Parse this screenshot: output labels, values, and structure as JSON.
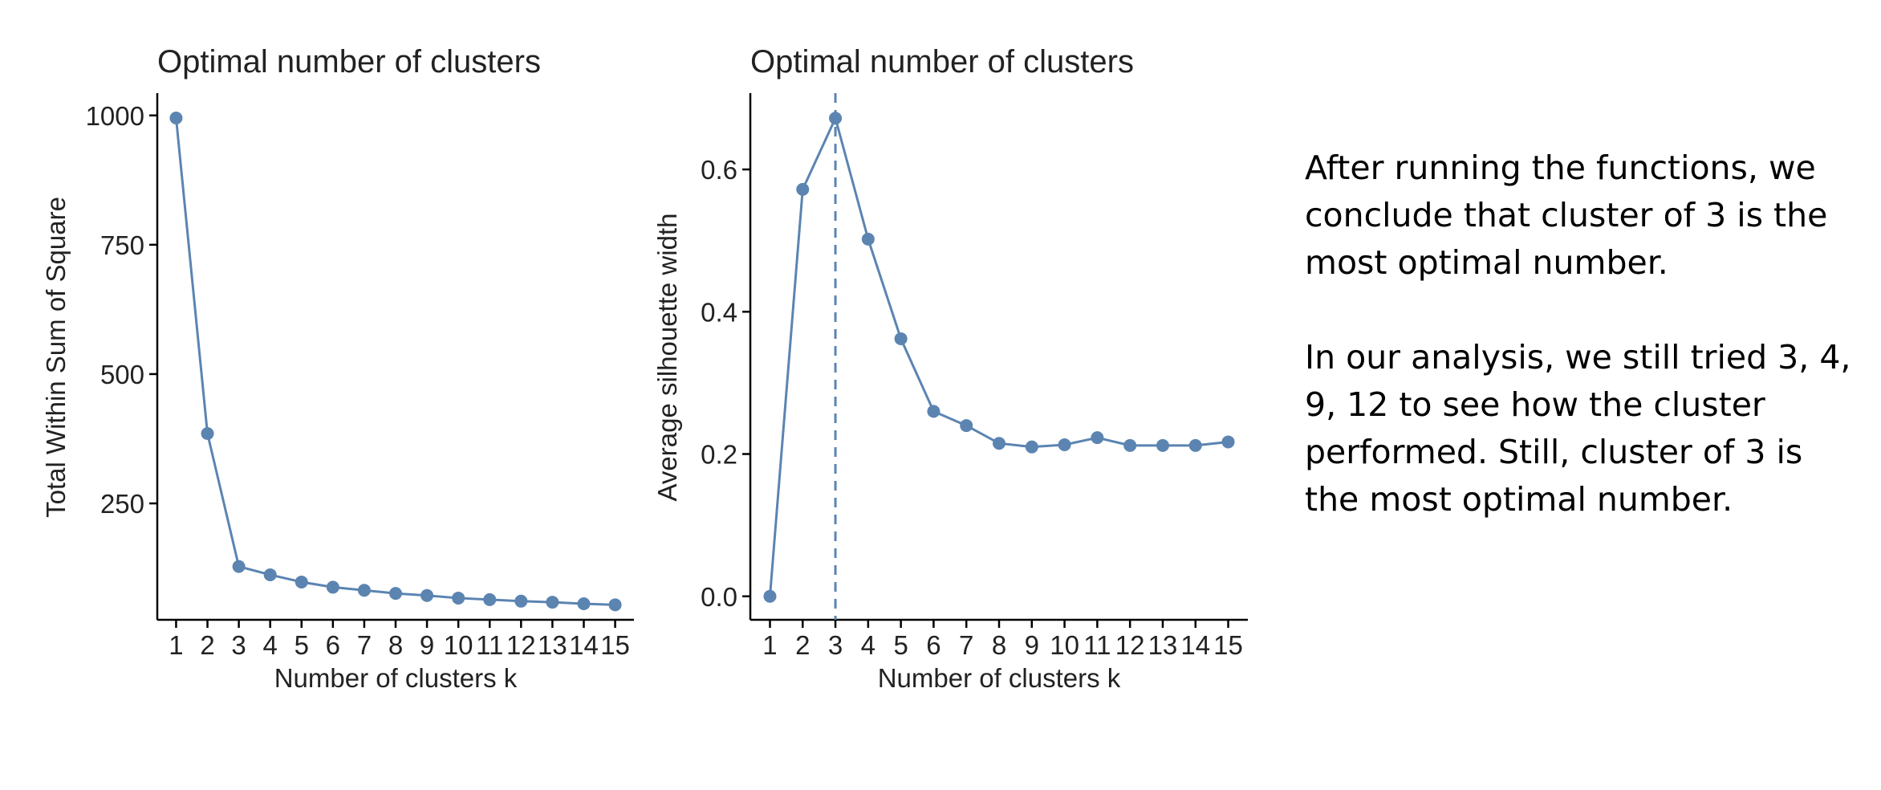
{
  "chart_data": [
    {
      "type": "line",
      "title": "Optimal number of clusters",
      "xlabel": "Number of clusters k",
      "ylabel": "Total Within Sum of Square",
      "x": [
        1,
        2,
        3,
        4,
        5,
        6,
        7,
        8,
        9,
        10,
        11,
        12,
        13,
        14,
        15
      ],
      "values": [
        995,
        385,
        128,
        112,
        98,
        88,
        82,
        76,
        72,
        67,
        64,
        61,
        59,
        56,
        54
      ],
      "yticks": [
        250,
        500,
        750,
        1000
      ],
      "ylim": [
        25,
        1040
      ],
      "xlim": [
        0.4,
        15.6
      ],
      "grid": false,
      "color": "#5b84b1"
    },
    {
      "type": "line",
      "title": "Optimal number of clusters",
      "xlabel": "Number of clusters k",
      "ylabel": "Average silhouette width",
      "x": [
        1,
        2,
        3,
        4,
        5,
        6,
        7,
        8,
        9,
        10,
        11,
        12,
        13,
        14,
        15
      ],
      "values": [
        0.0,
        0.572,
        0.672,
        0.502,
        0.362,
        0.26,
        0.24,
        0.215,
        0.21,
        0.213,
        0.223,
        0.212,
        0.212,
        0.212,
        0.217
      ],
      "yticks": [
        0.0,
        0.2,
        0.4,
        0.6
      ],
      "ytick_labels": [
        "0.0",
        "0.2",
        "0.4",
        "0.6"
      ],
      "ylim": [
        -0.033,
        0.705
      ],
      "xlim": [
        0.4,
        15.6
      ],
      "optimal_k": 3,
      "grid": false,
      "color": "#5b84b1"
    }
  ],
  "notes": {
    "paragraph1": "After running the functions, we conclude that cluster of 3 is the most optimal number.",
    "paragraph2": "In our analysis, we still tried 3, 4, 9, 12 to see how the cluster performed. Still, cluster of 3 is the most optimal number."
  }
}
